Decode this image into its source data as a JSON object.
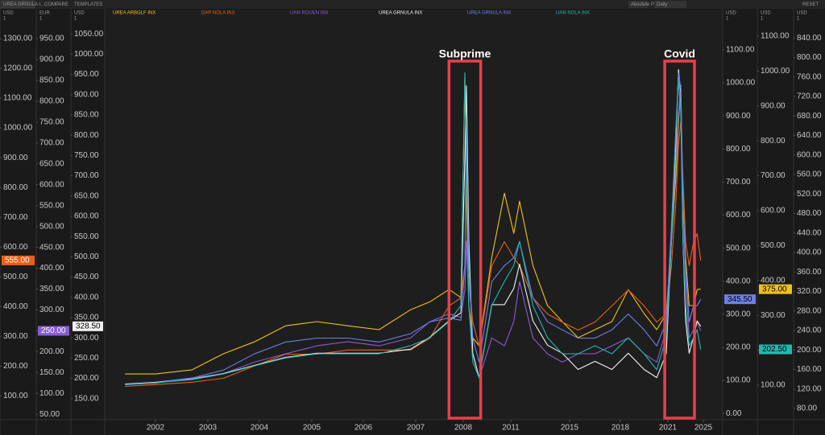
{
  "chart_data": {
    "type": "line",
    "toolbar": {
      "symbol": "UREA GRNULA I...",
      "compare": "COMPARE",
      "templates": "TEMPLATES",
      "price_mode": "Absolute Price",
      "interval": "Daily",
      "reset": "RESET"
    },
    "xticks": [
      2002,
      2003,
      2004,
      2005,
      2006,
      2007,
      2008,
      2011,
      2015,
      2018,
      2021,
      2025
    ],
    "xlim": [
      2001,
      2027
    ],
    "x": [
      2001.4,
      2002.0,
      2002.7,
      2003.3,
      2003.9,
      2004.5,
      2005.1,
      2005.7,
      2006.3,
      2006.9,
      2007.3,
      2007.7,
      2007.95,
      2008.1,
      2008.2,
      2008.35,
      2008.6,
      2009.0,
      2009.8,
      2010.6,
      2011.2,
      2011.6,
      2012.5,
      2013.5,
      2014.5,
      2015.5,
      2016.5,
      2017.5,
      2018.5,
      2019.5,
      2020.3,
      2020.9,
      2021.4,
      2021.9,
      2022.2,
      2022.45,
      2022.7,
      2023.0,
      2023.4,
      2023.9,
      2024.3,
      2024.7
    ],
    "axes": [
      {
        "unit": "USD",
        "multiplier": "1",
        "side": "left",
        "ylim": [
          20,
          1381
        ],
        "yticks": [
          {
            "value": 100,
            "label": "100.00"
          },
          {
            "value": 200,
            "label": "200.00"
          },
          {
            "value": 300,
            "label": "300.00"
          },
          {
            "value": 400,
            "label": "400.00"
          },
          {
            "value": 500,
            "label": "500.00"
          },
          {
            "value": 600,
            "label": "600.00"
          },
          {
            "value": 700,
            "label": "700.00"
          },
          {
            "value": 800,
            "label": "800.00"
          },
          {
            "value": 900,
            "label": "900.00"
          },
          {
            "value": 1000,
            "label": "1000.00"
          },
          {
            "value": 1100,
            "label": "1100.00"
          },
          {
            "value": 1200,
            "label": "1200.00"
          },
          {
            "value": 1300,
            "label": "1300.00"
          }
        ]
      },
      {
        "unit": "EUR",
        "multiplier": "1",
        "side": "left",
        "ylim": [
          37,
          1008
        ],
        "yticks": [
          {
            "value": 50,
            "label": "50.00"
          },
          {
            "value": 100,
            "label": "100.00"
          },
          {
            "value": 150,
            "label": "150.00"
          },
          {
            "value": 200,
            "label": "200.00"
          },
          {
            "value": 250,
            "label": "250.00"
          },
          {
            "value": 300,
            "label": "300.00"
          },
          {
            "value": 350,
            "label": "350.00"
          },
          {
            "value": 400,
            "label": "400.00"
          },
          {
            "value": 450,
            "label": "450.00"
          },
          {
            "value": 500,
            "label": "500.00"
          },
          {
            "value": 550,
            "label": "550.00"
          },
          {
            "value": 600,
            "label": "600.00"
          },
          {
            "value": 650,
            "label": "650.00"
          },
          {
            "value": 700,
            "label": "700.00"
          },
          {
            "value": 750,
            "label": "750.00"
          },
          {
            "value": 800,
            "label": "800.00"
          },
          {
            "value": 850,
            "label": "850.00"
          },
          {
            "value": 900,
            "label": "900.00"
          },
          {
            "value": 950,
            "label": "950.00"
          }
        ]
      },
      {
        "unit": "USD",
        "multiplier": "1",
        "side": "left",
        "ylim": [
          98,
          1098
        ],
        "yticks": [
          {
            "value": 150,
            "label": "150.00"
          },
          {
            "value": 200,
            "label": "200.00"
          },
          {
            "value": 250,
            "label": "250.00"
          },
          {
            "value": 300,
            "label": "300.00"
          },
          {
            "value": 350,
            "label": "350.00"
          },
          {
            "value": 400,
            "label": "400.00"
          },
          {
            "value": 450,
            "label": "450.00"
          },
          {
            "value": 500,
            "label": "500.00"
          },
          {
            "value": 550,
            "label": "550.00"
          },
          {
            "value": 600,
            "label": "600.00"
          },
          {
            "value": 650,
            "label": "650.00"
          },
          {
            "value": 700,
            "label": "700.00"
          },
          {
            "value": 750,
            "label": "750.00"
          },
          {
            "value": 800,
            "label": "800.00"
          },
          {
            "value": 850,
            "label": "850.00"
          },
          {
            "value": 900,
            "label": "900.00"
          },
          {
            "value": 950,
            "label": "950.00"
          },
          {
            "value": 1000,
            "label": "1000.00"
          },
          {
            "value": 1050,
            "label": "1050.00"
          }
        ]
      },
      {
        "unit": "USD",
        "multiplier": "1",
        "side": "right",
        "ylim": [
          -19,
          1207
        ],
        "yticks": [
          {
            "value": 0,
            "label": "0.00"
          },
          {
            "value": 100,
            "label": "100.00"
          },
          {
            "value": 200,
            "label": "200.00"
          },
          {
            "value": 300,
            "label": "300.00"
          },
          {
            "value": 400,
            "label": "400.00"
          },
          {
            "value": 500,
            "label": "500.00"
          },
          {
            "value": 600,
            "label": "600.00"
          },
          {
            "value": 700,
            "label": "700.00"
          },
          {
            "value": 800,
            "label": "800.00"
          },
          {
            "value": 900,
            "label": "900.00"
          },
          {
            "value": 1000,
            "label": "1000.00"
          },
          {
            "value": 1100,
            "label": "1100.00"
          }
        ]
      },
      {
        "unit": "USD",
        "multiplier": "1",
        "side": "right",
        "ylim": [
          1,
          1162
        ],
        "yticks": [
          {
            "value": 100,
            "label": "100.00"
          },
          {
            "value": 200,
            "label": "200.00"
          },
          {
            "value": 300,
            "label": "300.00"
          },
          {
            "value": 400,
            "label": "400.00"
          },
          {
            "value": 500,
            "label": "500.00"
          },
          {
            "value": 600,
            "label": "600.00"
          },
          {
            "value": 700,
            "label": "700.00"
          },
          {
            "value": 800,
            "label": "800.00"
          },
          {
            "value": 900,
            "label": "900.00"
          },
          {
            "value": 1000,
            "label": "1000.00"
          },
          {
            "value": 1100,
            "label": "1100.00"
          }
        ]
      },
      {
        "unit": "USD",
        "multiplier": "1",
        "side": "right",
        "ylim": [
          57,
          888
        ],
        "yticks": [
          {
            "value": 80,
            "label": "80.00"
          },
          {
            "value": 120,
            "label": "120.00"
          },
          {
            "value": 160,
            "label": "160.00"
          },
          {
            "value": 200,
            "label": "200.00"
          },
          {
            "value": 240,
            "label": "240.00"
          },
          {
            "value": 280,
            "label": "280.00"
          },
          {
            "value": 320,
            "label": "320.00"
          },
          {
            "value": 360,
            "label": "360.00"
          },
          {
            "value": 400,
            "label": "400.00"
          },
          {
            "value": 440,
            "label": "440.00"
          },
          {
            "value": 480,
            "label": "480.00"
          },
          {
            "value": 520,
            "label": "520.00"
          },
          {
            "value": 560,
            "label": "560.00"
          },
          {
            "value": 600,
            "label": "600.00"
          },
          {
            "value": 640,
            "label": "640.00"
          },
          {
            "value": 680,
            "label": "680.00"
          },
          {
            "value": 720,
            "label": "720.00"
          },
          {
            "value": 760,
            "label": "760.00"
          },
          {
            "value": 800,
            "label": "800.00"
          },
          {
            "value": 840,
            "label": "840.00"
          }
        ]
      }
    ],
    "series": [
      {
        "name": "UREA ARBGLF INX",
        "color": "#f0c020",
        "axis": 4,
        "badge": {
          "value": 375,
          "label": "375.00"
        },
        "values": [
          132,
          132,
          144,
          190,
          224,
          270,
          282,
          270,
          259,
          316,
          339,
          374,
          351,
          983,
          627,
          328,
          236,
          213,
          466,
          650,
          535,
          627,
          443,
          328,
          282,
          236,
          259,
          282,
          374,
          305,
          259,
          305,
          512,
          696,
          857,
          960,
          627,
          466,
          328,
          328,
          374,
          375
        ]
      },
      {
        "name": "DAP NOLA INX",
        "color": "#e8601c",
        "axis": 0,
        "badge": {
          "value": 555,
          "label": "555.00"
        },
        "values": [
          132,
          138,
          146,
          159,
          200,
          240,
          240,
          254,
          254,
          254,
          294,
          402,
          429,
          537,
          618,
          483,
          348,
          267,
          537,
          618,
          564,
          537,
          429,
          375,
          348,
          321,
          348,
          402,
          456,
          402,
          348,
          375,
          537,
          753,
          942,
          1023,
          834,
          618,
          537,
          618,
          645,
          555
        ]
      },
      {
        "name": "UAN ROUEN INX",
        "color": "#8a5cd0",
        "axis": 1,
        "badge": {
          "value": 250,
          "label": "250.00"
        },
        "values": [
          121,
          127,
          137,
          147,
          175,
          195,
          214,
          224,
          214,
          233,
          272,
          291,
          282,
          349,
          465,
          311,
          195,
          137,
          233,
          214,
          272,
          368,
          233,
          195,
          175,
          195,
          195,
          214,
          233,
          195,
          175,
          253,
          465,
          658,
          774,
          832,
          561,
          368,
          233,
          253,
          272,
          250
        ]
      },
      {
        "name": "UREA GRNULA INX",
        "color": "#f2f2f2",
        "axis": 2,
        "badge": {
          "value": 328.5,
          "label": "328.50"
        },
        "values": [
          186,
          190,
          198,
          212,
          232,
          252,
          262,
          262,
          262,
          272,
          302,
          342,
          362,
          742,
          922,
          542,
          262,
          202,
          382,
          382,
          422,
          482,
          342,
          282,
          262,
          222,
          242,
          222,
          262,
          222,
          202,
          262,
          542,
          782,
          962,
          902,
          542,
          342,
          262,
          302,
          342,
          328.5
        ]
      },
      {
        "name": "UREA GRNULA INX",
        "color": "#6f7fe8",
        "axis": 3,
        "badge": {
          "value": 345.5,
          "label": "345.50"
        },
        "values": [
          87,
          92,
          107,
          131,
          180,
          216,
          228,
          228,
          216,
          241,
          277,
          289,
          282,
          447,
          860,
          447,
          228,
          156,
          399,
          447,
          471,
          520,
          350,
          277,
          253,
          228,
          228,
          253,
          301,
          253,
          204,
          277,
          569,
          860,
          1030,
          982,
          642,
          447,
          277,
          326,
          326,
          345.5
        ]
      },
      {
        "name": "UAN NOLA INX",
        "color": "#22b8b0",
        "axis": 4,
        "badge": {
          "value": 202.5,
          "label": "202.50"
        },
        "values": [
          102,
          107,
          116,
          132,
          155,
          178,
          190,
          190,
          190,
          213,
          236,
          282,
          328,
          995,
          742,
          328,
          167,
          121,
          328,
          397,
          443,
          512,
          328,
          236,
          190,
          190,
          213,
          190,
          236,
          190,
          144,
          236,
          512,
          834,
          972,
          880,
          512,
          328,
          213,
          236,
          259,
          202.5
        ]
      }
    ],
    "annotations": [
      {
        "text": "Subprime",
        "x": [
          2007.7,
          2009.1
        ]
      },
      {
        "text": "Covid",
        "x": [
          2020.8,
          2024.0
        ]
      }
    ]
  }
}
